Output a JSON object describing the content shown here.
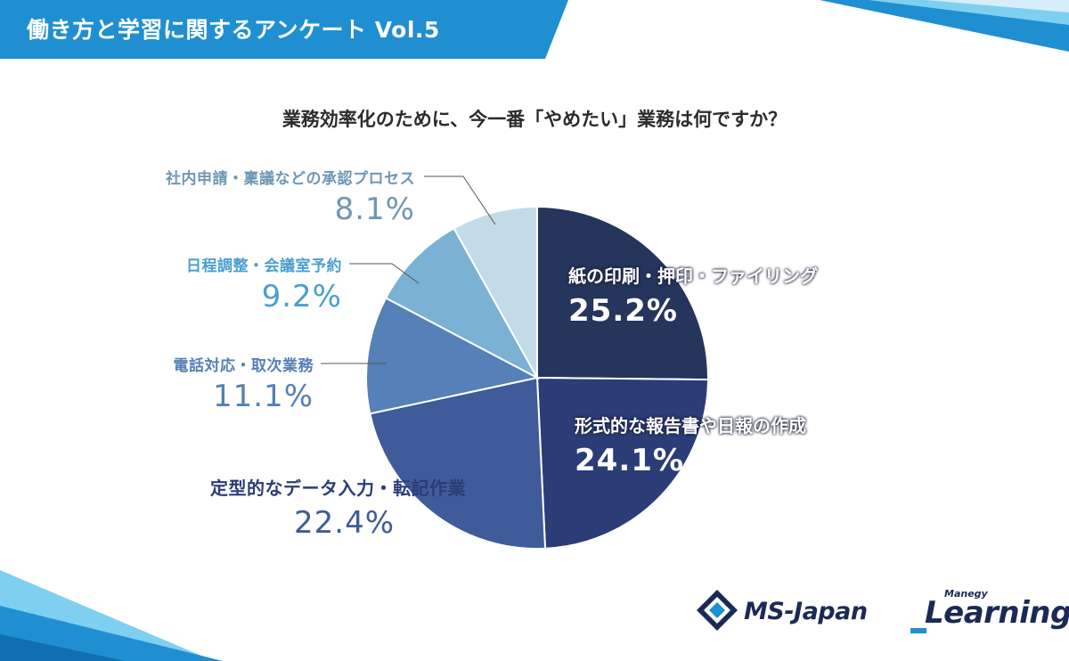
{
  "header": {
    "title": "働き方と学習に関するアンケート Vol.5"
  },
  "question": "業務効率化のために、今一番「やめたい」業務は何ですか？",
  "chart_data": {
    "type": "pie",
    "title": "業務効率化のために、今一番「やめたい」業務は何ですか？",
    "slices": [
      {
        "label": "紙の印刷・押印・ファイリング",
        "value": 25.2,
        "value_label": "25.2%",
        "color": "#25355c"
      },
      {
        "label": "形式的な報告書や日報の作成",
        "value": 24.1,
        "value_label": "24.1%",
        "color": "#2b3c77"
      },
      {
        "label": "定型的なデータ入力・転記作業",
        "value": 22.4,
        "value_label": "22.4%",
        "color": "#3f5b9a"
      },
      {
        "label": "電話対応・取次業務",
        "value": 11.1,
        "value_label": "11.1%",
        "color": "#5580b8"
      },
      {
        "label": "日程調整・会議室予約",
        "value": 9.2,
        "value_label": "9.2%",
        "color": "#7ab1d4"
      },
      {
        "label": "社内申請・稟議などの承認プロセス",
        "value": 8.1,
        "value_label": "8.1%",
        "color": "#c3dbe8"
      }
    ]
  },
  "logos": {
    "ms_japan": "MS-Japan",
    "manegy_small": "Manegy",
    "learning": "Learning"
  },
  "colors": {
    "header_blue": "#1f8fd1",
    "accent_light": "#7fcff0",
    "text_dark": "#2b2b2b"
  }
}
